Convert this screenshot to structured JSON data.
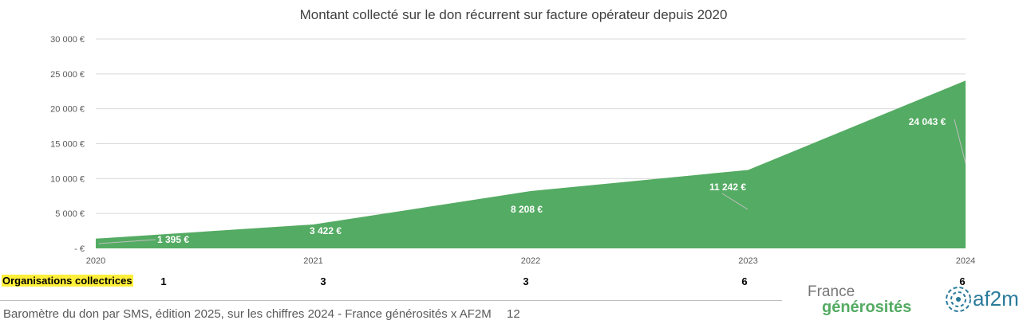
{
  "chart_data": {
    "type": "area",
    "title": "Montant collecté sur le don récurrent sur facture opérateur depuis 2020",
    "categories": [
      "2020",
      "2021",
      "2022",
      "2023",
      "2024"
    ],
    "series": [
      {
        "values": [
          1395,
          3422,
          8208,
          11242,
          24043
        ],
        "color": "#54ab63"
      }
    ],
    "data_labels": [
      "1 395 €",
      "3 422 €",
      "8 208 €",
      "11 242 €",
      "24 043 €"
    ],
    "yticks": [
      "-  €",
      "5 000 €",
      "10 000 €",
      "15 000 €",
      "20 000 €",
      "25 000 €",
      "30 000 €"
    ],
    "ylim": [
      0,
      30000
    ],
    "grid": true
  },
  "organisations": {
    "label": "Organisations collectrices",
    "values": [
      "1",
      "3",
      "3",
      "6",
      "6"
    ]
  },
  "footer": {
    "text": "Baromètre du don par SMS, édition 2025, sur les chiffres 2024 - France générosités x AF2M",
    "page": "12"
  },
  "logos": {
    "france_generosites": [
      "France",
      "générosités"
    ],
    "af2m": "af2m"
  }
}
